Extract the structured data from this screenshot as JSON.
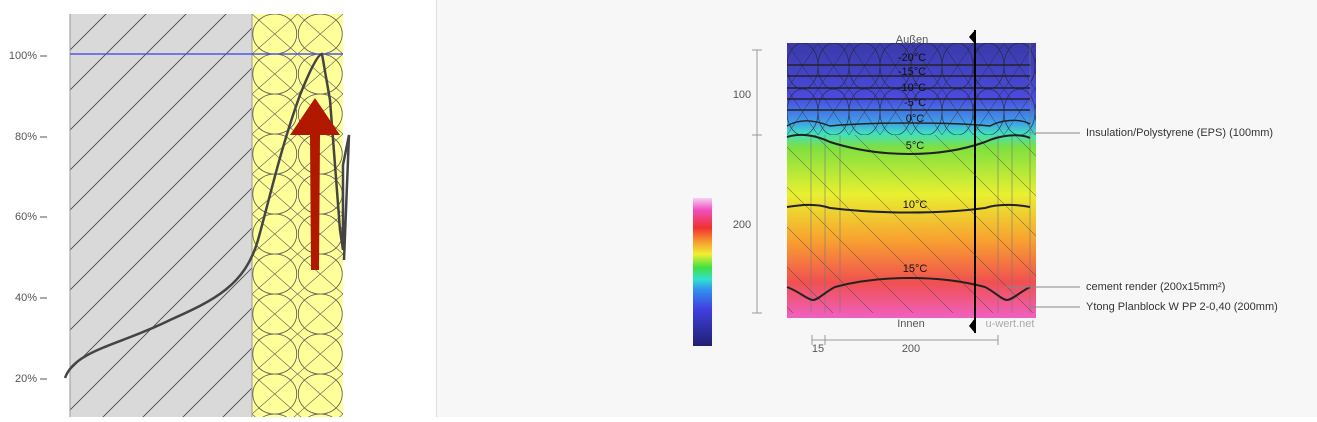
{
  "left_panel": {
    "y_labels": [
      "100%",
      "80%",
      "60%",
      "40%",
      "20%"
    ]
  },
  "right_panel": {
    "top_label": "Außen",
    "isotherms": [
      "-20°C",
      "-15°C",
      "-10°C",
      "-5°C",
      "0°C",
      "5°C",
      "10°C",
      "15°C"
    ],
    "bottom_label": "Innen",
    "watermark": "u-wert.net",
    "vertical_dimensions": [
      "100",
      "200"
    ],
    "horizontal_dimensions": [
      "15",
      "200"
    ],
    "layers": [
      "Insulation/Polystyrene (EPS) (100mm)",
      "cement render (200x15mm²)",
      "Ytong Planblock W PP 2-0,40 (200mm)"
    ]
  }
}
